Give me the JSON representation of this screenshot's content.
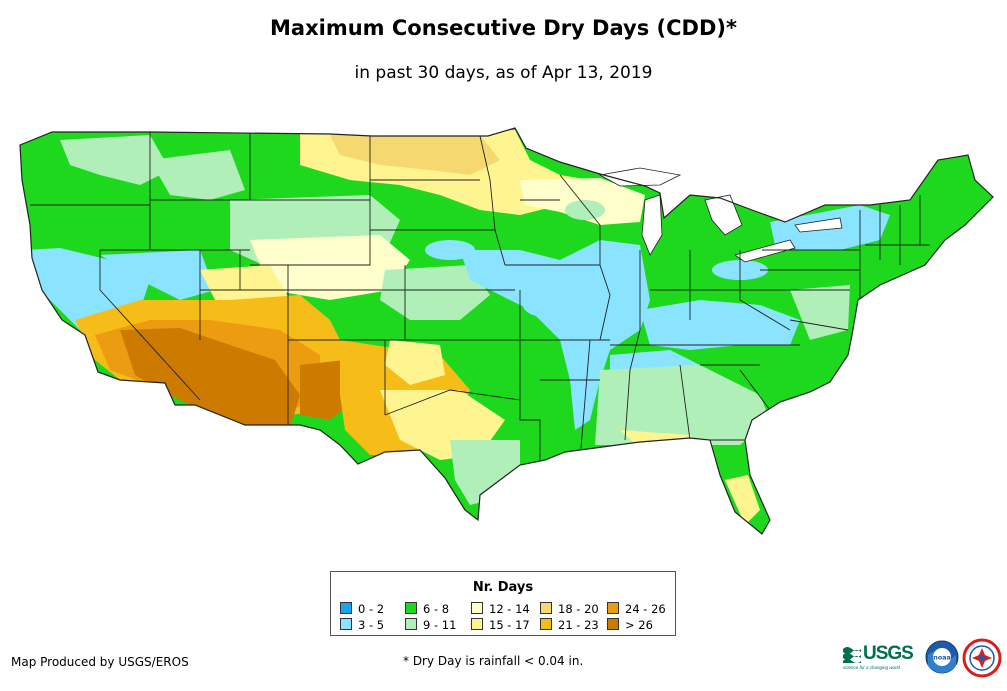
{
  "title": "Maximum Consecutive Dry Days (CDD)*",
  "subtitle": "in past 30 days, as of Apr 13, 2019",
  "legend": {
    "title": "Nr. Days",
    "items": [
      {
        "label": "0 - 2",
        "color": "#1aa3ee"
      },
      {
        "label": "3 - 5",
        "color": "#8ae4ff"
      },
      {
        "label": "6 - 8",
        "color": "#1ed81e"
      },
      {
        "label": "9 - 11",
        "color": "#b0f0b8"
      },
      {
        "label": "12 - 14",
        "color": "#ffffcc"
      },
      {
        "label": "15 - 17",
        "color": "#fff590"
      },
      {
        "label": "18 - 20",
        "color": "#f5d870"
      },
      {
        "label": "21 - 23",
        "color": "#f6bc18"
      },
      {
        "label": "24 - 26",
        "color": "#eb9c10"
      },
      {
        "label": "> 26",
        "color": "#cc7a00"
      }
    ]
  },
  "footer": {
    "credit": "Map Produced by USGS/EROS",
    "footnote": "* Dry Day is rainfall < 0.04 in."
  },
  "logos": {
    "usgs_text": "USGS",
    "usgs_tagline": "science for a changing world",
    "noaa_text": "noaa",
    "usgs_color": "#00704a",
    "noaa_color": "#1e5aa8",
    "nws_color": "#d81e1e"
  },
  "map": {
    "region": "Contiguous United States",
    "border_color": "#222222"
  }
}
